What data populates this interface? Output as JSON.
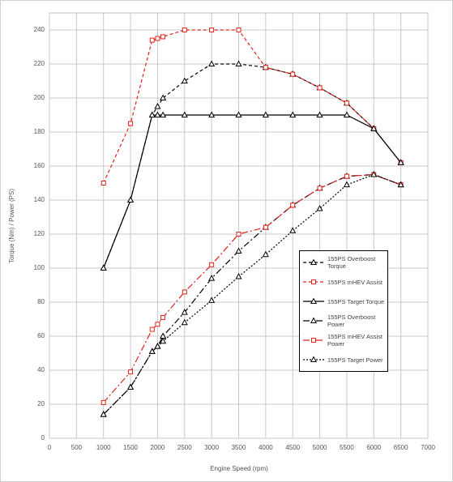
{
  "chart_data": {
    "type": "line",
    "x_label": "Engine Speed (rpm)",
    "y_label": "Torque (Nm) / Power (PS)",
    "x": [
      1000,
      1500,
      1900,
      2000,
      2100,
      2500,
      3000,
      3500,
      4000,
      4500,
      5000,
      5500,
      6000,
      6500
    ],
    "series": [
      {
        "name": "155PS Overboost Torque",
        "color": "#000000",
        "dash": "4,3",
        "marker": "triangle",
        "values": [
          100,
          140,
          190,
          195,
          200,
          210,
          220,
          220,
          218,
          214,
          206,
          197,
          182,
          162
        ]
      },
      {
        "name": "155PS mHEV Assist",
        "color": "#e0201b",
        "dash": "4,3",
        "marker": "square",
        "values": [
          150,
          185,
          234,
          235,
          236,
          240,
          240,
          240,
          218,
          214,
          206,
          197,
          182,
          162
        ]
      },
      {
        "name": "155PS Target Torque",
        "color": "#000000",
        "dash": "none",
        "marker": "triangle",
        "values": [
          100,
          140,
          190,
          190,
          190,
          190,
          190,
          190,
          190,
          190,
          190,
          190,
          182,
          162
        ]
      },
      {
        "name": "155PS Overboost Power",
        "color": "#000000",
        "dash": "8,3,2,3",
        "marker": "triangle",
        "values": [
          14,
          30,
          51,
          54,
          60,
          74,
          94,
          110,
          124,
          137,
          147,
          154,
          155,
          149
        ]
      },
      {
        "name": "155PS mHEV Assist Power",
        "color": "#e0201b",
        "dash": "8,3,2,3",
        "marker": "square",
        "values": [
          21,
          39,
          64,
          67,
          71,
          86,
          102,
          120,
          124,
          137,
          147,
          154,
          155,
          149
        ]
      },
      {
        "name": "155PS Target Power",
        "color": "#000000",
        "dash": "2,2",
        "marker": "triangle",
        "values": [
          14,
          30,
          51,
          54,
          57,
          68,
          81,
          95,
          108,
          122,
          135,
          149,
          155,
          149
        ]
      }
    ],
    "xlim": [
      0,
      7000
    ],
    "xticks": [
      0,
      500,
      1000,
      1500,
      2000,
      2500,
      3000,
      3500,
      4000,
      4500,
      5000,
      5500,
      6000,
      6500,
      7000
    ],
    "ylim": [
      0,
      250
    ],
    "yticks": [
      0,
      20,
      40,
      60,
      80,
      100,
      120,
      140,
      160,
      180,
      200,
      220,
      240
    ],
    "grid": true
  }
}
